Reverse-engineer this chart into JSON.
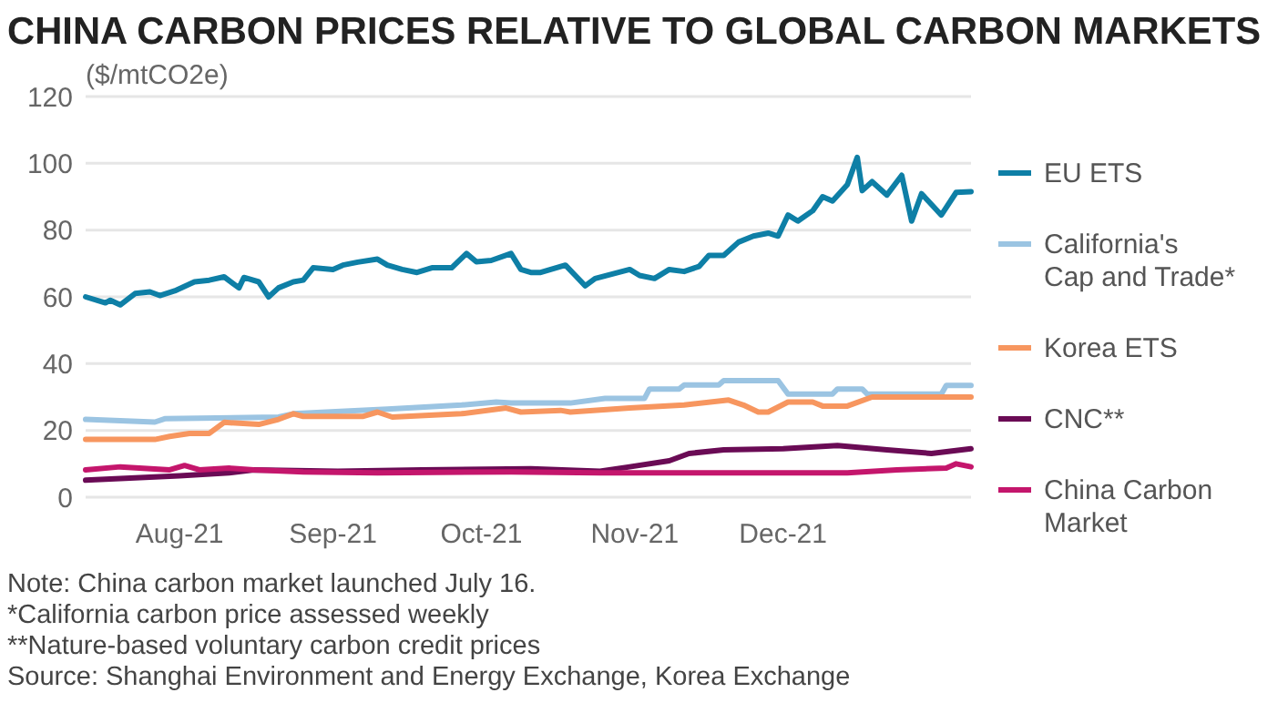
{
  "chart_data": {
    "type": "line",
    "title": "CHINA CARBON PRICES RELATIVE TO GLOBAL CARBON MARKETS",
    "ylabel": "($/mtCO2e)",
    "xlim": [
      "2021-07-13",
      "2022-01-08"
    ],
    "xticks": [
      {
        "value": "2021-08-01",
        "label": "Aug-21"
      },
      {
        "value": "2021-09-01",
        "label": "Sep-21"
      },
      {
        "value": "2021-10-01",
        "label": "Oct-21"
      },
      {
        "value": "2021-11-01",
        "label": "Nov-21"
      },
      {
        "value": "2021-12-01",
        "label": "Dec-21"
      }
    ],
    "ylim": [
      0,
      120
    ],
    "yticks": [
      0,
      20,
      40,
      60,
      80,
      100,
      120
    ],
    "grid": "y",
    "legend": "right",
    "marker": "none",
    "line_style": "solid",
    "series": [
      {
        "name": "EU ETS",
        "color": "#0e7fa6",
        "x": [
          "2021-07-13",
          "2021-07-17",
          "2021-07-18",
          "2021-07-20",
          "2021-07-23",
          "2021-07-26",
          "2021-07-28",
          "2021-07-31",
          "2021-08-04",
          "2021-08-07",
          "2021-08-10",
          "2021-08-13",
          "2021-08-14",
          "2021-08-17",
          "2021-08-19",
          "2021-08-21",
          "2021-08-24",
          "2021-08-26",
          "2021-08-28",
          "2021-09-01",
          "2021-09-03",
          "2021-09-06",
          "2021-09-10",
          "2021-09-12",
          "2021-09-15",
          "2021-09-18",
          "2021-09-21",
          "2021-09-25",
          "2021-09-28",
          "2021-09-30",
          "2021-10-03",
          "2021-10-07",
          "2021-10-09",
          "2021-10-11",
          "2021-10-13",
          "2021-10-18",
          "2021-10-20",
          "2021-10-22",
          "2021-10-24",
          "2021-10-31",
          "2021-11-02",
          "2021-11-05",
          "2021-11-08",
          "2021-11-11",
          "2021-11-14",
          "2021-11-16",
          "2021-11-19",
          "2021-11-22",
          "2021-11-25",
          "2021-11-28",
          "2021-11-30",
          "2021-12-02",
          "2021-12-04",
          "2021-12-07",
          "2021-12-09",
          "2021-12-11",
          "2021-12-14",
          "2021-12-16",
          "2021-12-17",
          "2021-12-19",
          "2021-12-22",
          "2021-12-25",
          "2021-12-27",
          "2021-12-29",
          "2022-01-02",
          "2022-01-05",
          "2022-01-08"
        ],
        "values": [
          60,
          58.2,
          59,
          57.6,
          61,
          61.5,
          60.4,
          61.8,
          64.5,
          65,
          66,
          62.7,
          65.8,
          64.5,
          60,
          62.7,
          64.5,
          65,
          68.7,
          68.2,
          69.5,
          70.4,
          71.3,
          69.5,
          68.2,
          67.3,
          68.7,
          68.7,
          73,
          70.5,
          70.9,
          73,
          68.2,
          67.3,
          67.3,
          69.5,
          66.4,
          63.3,
          65.5,
          68.2,
          66.4,
          65.5,
          68.2,
          67.6,
          69.1,
          72.4,
          72.4,
          76.4,
          78.2,
          79.1,
          78.2,
          84.5,
          82.7,
          85.8,
          90,
          88.7,
          93.6,
          101.8,
          91.8,
          94.5,
          90.5,
          96.4,
          82.7,
          90.9,
          84.5,
          91.3,
          91.5
        ]
      },
      {
        "name": "California's Cap and Trade*",
        "color": "#9bc4e2",
        "x": [
          "2021-07-13",
          "2021-07-27",
          "2021-07-29",
          "2021-08-21",
          "2021-08-24",
          "2021-09-12",
          "2021-09-27",
          "2021-10-04",
          "2021-10-07",
          "2021-10-19",
          "2021-10-26",
          "2021-11-03",
          "2021-11-04",
          "2021-11-10",
          "2021-11-11",
          "2021-11-18",
          "2021-11-19",
          "2021-11-30",
          "2021-12-02",
          "2021-12-11",
          "2021-12-12",
          "2021-12-17",
          "2021-12-18",
          "2022-01-02",
          "2022-01-03",
          "2022-01-08"
        ],
        "values": [
          23.3,
          22.5,
          23.5,
          24,
          25,
          26.4,
          27.6,
          28.5,
          28.2,
          28.2,
          29.6,
          29.6,
          32.4,
          32.4,
          33.6,
          33.6,
          34.9,
          34.9,
          30.9,
          30.9,
          32.4,
          32.4,
          30.9,
          30.9,
          33.5,
          33.5
        ]
      },
      {
        "name": "Korea ETS",
        "color": "#f7965f",
        "x": [
          "2021-07-13",
          "2021-07-27",
          "2021-07-30",
          "2021-08-03",
          "2021-08-07",
          "2021-08-10",
          "2021-08-17",
          "2021-08-21",
          "2021-08-24",
          "2021-08-26",
          "2021-09-07",
          "2021-09-10",
          "2021-09-13",
          "2021-09-27",
          "2021-10-06",
          "2021-10-09",
          "2021-10-17",
          "2021-10-19",
          "2021-10-31",
          "2021-11-11",
          "2021-11-20",
          "2021-11-23",
          "2021-11-26",
          "2021-11-28",
          "2021-12-02",
          "2021-12-07",
          "2021-12-09",
          "2021-12-14",
          "2021-12-19",
          "2022-01-08"
        ],
        "values": [
          17.3,
          17.3,
          18.2,
          19.1,
          19.1,
          22.4,
          21.8,
          23.3,
          25,
          24.2,
          24.2,
          25.5,
          24,
          25,
          26.7,
          25.5,
          26,
          25.5,
          26.7,
          27.6,
          29.1,
          27.6,
          25.5,
          25.5,
          28.5,
          28.5,
          27.3,
          27.3,
          30,
          30
        ]
      },
      {
        "name": "CNC**",
        "color": "#6a0b55",
        "x": [
          "2021-07-13",
          "2021-08-01",
          "2021-08-11",
          "2021-08-16",
          "2021-09-02",
          "2021-09-19",
          "2021-10-11",
          "2021-10-25",
          "2021-10-31",
          "2021-11-08",
          "2021-11-12",
          "2021-11-19",
          "2021-12-01",
          "2021-12-12",
          "2021-12-22",
          "2021-12-31",
          "2022-01-08"
        ],
        "values": [
          5.1,
          6.4,
          7.3,
          8.2,
          7.8,
          8.2,
          8.5,
          7.8,
          9.1,
          10.9,
          13.1,
          14.2,
          14.5,
          15.5,
          14.2,
          13.1,
          14.5
        ]
      },
      {
        "name": "China Carbon Market",
        "color": "#c4166c",
        "x": [
          "2021-07-13",
          "2021-07-20",
          "2021-07-30",
          "2021-08-02",
          "2021-08-05",
          "2021-08-11",
          "2021-08-16",
          "2021-08-26",
          "2021-09-10",
          "2021-10-07",
          "2021-10-25",
          "2021-12-14",
          "2021-12-24",
          "2022-01-03",
          "2022-01-05",
          "2022-01-08"
        ],
        "values": [
          8.2,
          9.1,
          8.2,
          9.5,
          8.2,
          8.7,
          8.2,
          7.6,
          7.3,
          7.6,
          7.3,
          7.3,
          8.2,
          8.7,
          10,
          9.1
        ]
      }
    ],
    "annotations": [
      "Note: China carbon market launched July 16.",
      "*California carbon price assessed weekly",
      "**Nature-based voluntary carbon credit prices",
      "Source: Shanghai Environment and Energy Exchange, Korea Exchange"
    ]
  }
}
